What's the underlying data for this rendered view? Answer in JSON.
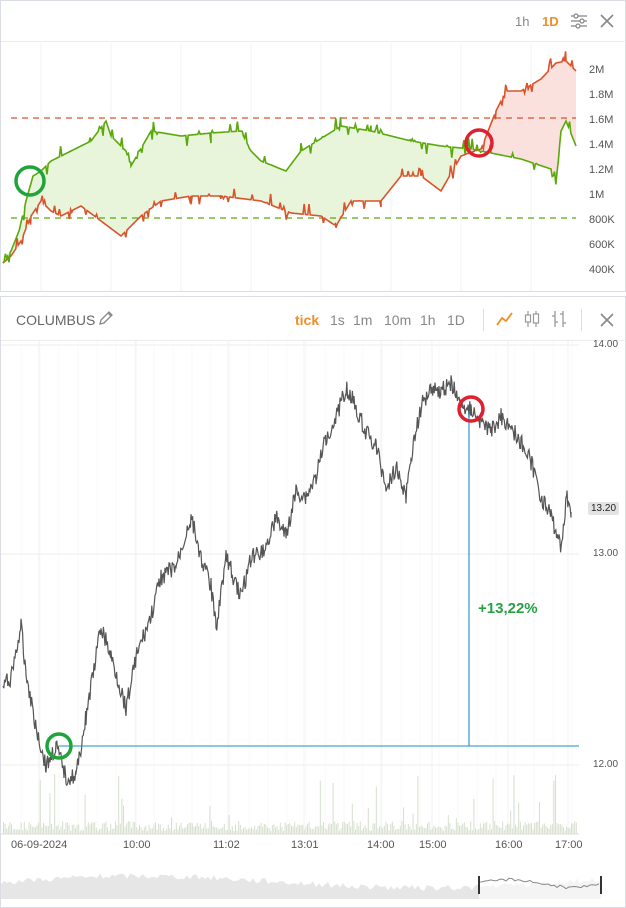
{
  "top_panel": {
    "toolbar": {
      "h1": "1h",
      "d1": "1D",
      "active": "1D"
    },
    "y_axis": [
      "2M",
      "1.8M",
      "1.6M",
      "1.4M",
      "1.2M",
      "1M",
      "800K",
      "600K",
      "400K"
    ],
    "colors": {
      "buyers": "#5aa80c",
      "sellers": "#d9532b",
      "buyers_fill": "#e8f5da",
      "sellers_fill": "#fbe1dd"
    }
  },
  "bottom_panel": {
    "instrument": "COLUMBUS",
    "timeframes": [
      "tick",
      "1s",
      "1m",
      "10m",
      "1h",
      "1D"
    ],
    "active_timeframe": "tick",
    "price_axis": [
      "14.00",
      "13.00",
      "12.00"
    ],
    "current_price": "13.20",
    "change_label": "+13,22%",
    "time_axis": [
      "06-09-2024",
      "10:00",
      "11:02",
      "13:01",
      "14:00",
      "15:00",
      "16:00",
      "17:00"
    ],
    "colors": {
      "line": "#555555",
      "measure": "#1e8fc9",
      "gain": "#27a243",
      "volume": "#c9d6bd"
    }
  },
  "markers": {
    "start_circle_color": "#1fa43a",
    "end_circle_color": "#e0202e"
  }
}
